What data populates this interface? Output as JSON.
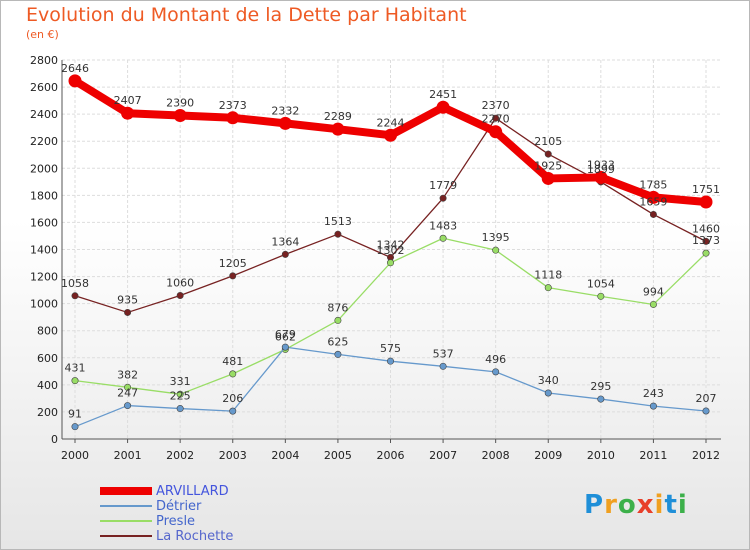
{
  "title": "Evolution du Montant de la Dette par Habitant",
  "subtitle": "(en €)",
  "logo": {
    "text": "Proxiti",
    "letter_colors": [
      "#1f8fd8",
      "#f0a020",
      "#3cb04a",
      "#e83f2a",
      "#f0a020",
      "#1f8fd8",
      "#3cb04a"
    ]
  },
  "chart_data": {
    "type": "line",
    "x": [
      "2000",
      "2001",
      "2002",
      "2003",
      "2004",
      "2005",
      "2006",
      "2007",
      "2008",
      "2009",
      "2010",
      "2011",
      "2012"
    ],
    "ylim": [
      0,
      2800
    ],
    "yticks": [
      "0",
      "200",
      "400",
      "600",
      "800",
      "1000",
      "1200",
      "1400",
      "1600",
      "1800",
      "2000",
      "2200",
      "2400",
      "2600",
      "2800"
    ],
    "grid": true,
    "legend_placement": "bottom-left",
    "series": [
      {
        "name": "ARVILLARD",
        "color": "#ee0000",
        "values": [
          2646,
          2407,
          2390,
          2373,
          2332,
          2289,
          2244,
          2451,
          2270,
          1925,
          1933,
          1785,
          1751
        ],
        "labels": [
          "2646",
          "2407",
          "2390",
          "2373",
          "2332",
          "2289",
          "2244",
          "2451",
          "2270",
          "1925",
          "1933",
          "1785",
          "1751"
        ]
      },
      {
        "name": "Détrier",
        "color": "#6699cc",
        "values": [
          91,
          247,
          225,
          206,
          679,
          625,
          575,
          537,
          496,
          340,
          295,
          243,
          207
        ],
        "labels": [
          "91",
          "247",
          "225",
          "206",
          "679",
          "625",
          "575",
          "537",
          "496",
          "340",
          "295",
          "243",
          "207"
        ]
      },
      {
        "name": "Presle",
        "color": "#99dd66",
        "values": [
          431,
          382,
          331,
          481,
          662,
          876,
          1302,
          1483,
          1395,
          1118,
          1054,
          994,
          1373
        ],
        "labels": [
          "431",
          "382",
          "331",
          "481",
          "662",
          "876",
          "1302",
          "1483",
          "1395",
          "1118",
          "1054",
          "994",
          "1373"
        ]
      },
      {
        "name": "La Rochette",
        "color": "#772222",
        "values": [
          1058,
          935,
          1060,
          1205,
          1364,
          1513,
          1342,
          1779,
          2370,
          2105,
          1899,
          1659,
          1460
        ],
        "labels": [
          "1058",
          "935",
          "1060",
          "1205",
          "1364",
          "1513",
          "1342",
          "1779",
          "2370",
          "2105",
          "1899",
          "1659",
          "1460"
        ]
      }
    ]
  }
}
